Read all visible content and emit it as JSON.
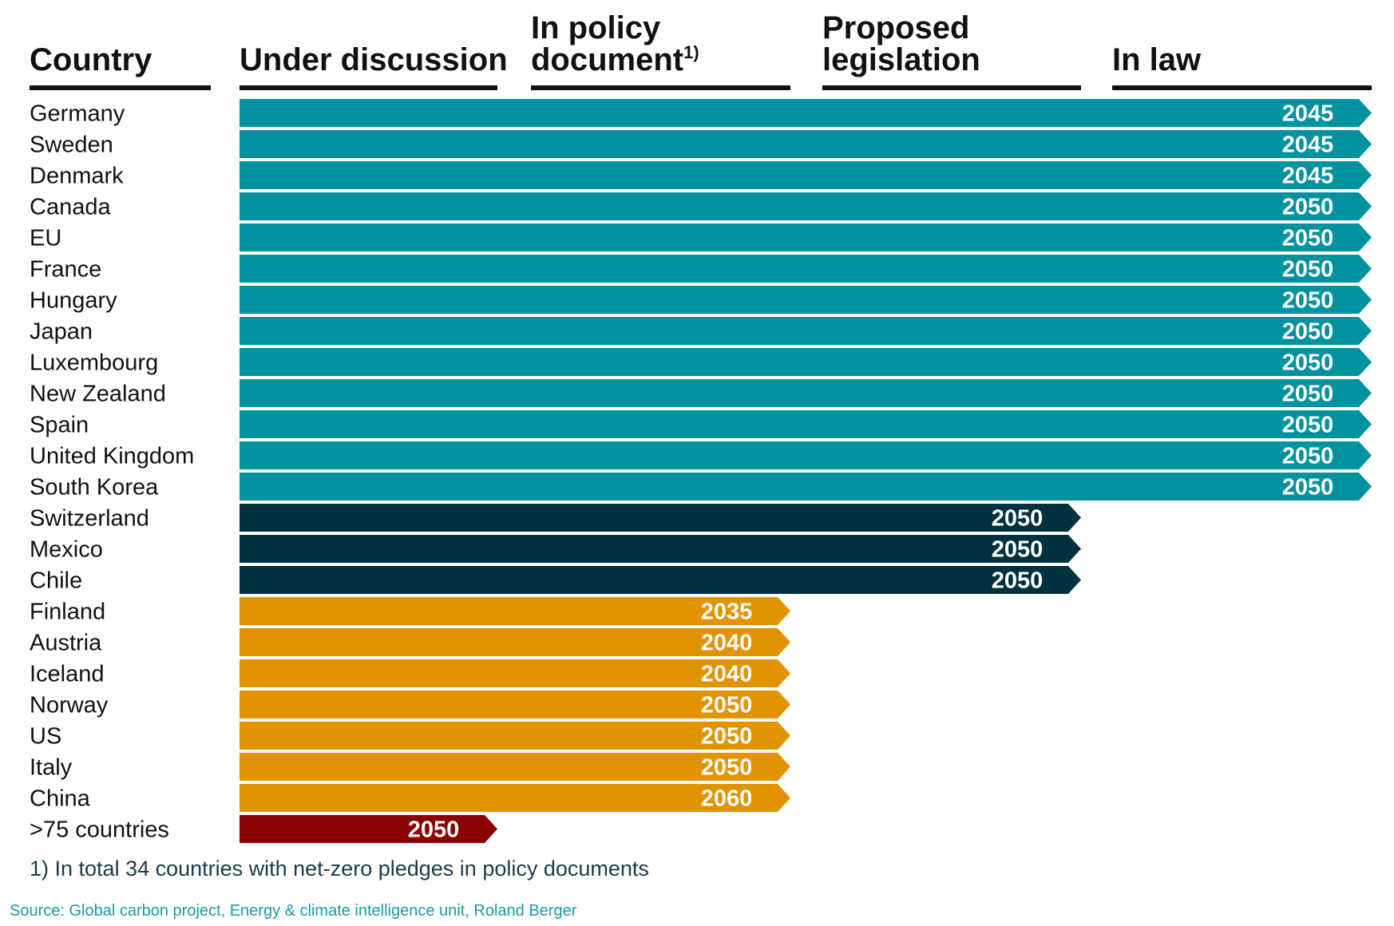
{
  "columns": {
    "country": "Country",
    "under_discussion": "Under discussion",
    "in_policy_line1": "In policy",
    "in_policy_line2": "document",
    "in_policy_sup": "1)",
    "proposed_line1": "Proposed",
    "proposed_line2": "legislation",
    "in_law": "In law"
  },
  "colors": {
    "in_law": "#00929E",
    "proposed_legislation": "#00313E",
    "in_policy_document": "#E39300",
    "under_discussion": "#8B0000"
  },
  "chart_data": {
    "type": "bar",
    "title": "",
    "stages": [
      "Under discussion",
      "In policy document",
      "Proposed legislation",
      "In law"
    ],
    "rows": [
      {
        "country": "Germany",
        "stage": "In law",
        "year": "2045"
      },
      {
        "country": "Sweden",
        "stage": "In law",
        "year": "2045"
      },
      {
        "country": "Denmark",
        "stage": "In law",
        "year": "2045"
      },
      {
        "country": "Canada",
        "stage": "In law",
        "year": "2050"
      },
      {
        "country": "EU",
        "stage": "In law",
        "year": "2050"
      },
      {
        "country": "France",
        "stage": "In law",
        "year": "2050"
      },
      {
        "country": "Hungary",
        "stage": "In law",
        "year": "2050"
      },
      {
        "country": "Japan",
        "stage": "In law",
        "year": "2050"
      },
      {
        "country": "Luxembourg",
        "stage": "In law",
        "year": "2050"
      },
      {
        "country": "New Zealand",
        "stage": "In law",
        "year": "2050"
      },
      {
        "country": "Spain",
        "stage": "In law",
        "year": "2050"
      },
      {
        "country": "United Kingdom",
        "stage": "In law",
        "year": "2050"
      },
      {
        "country": "South Korea",
        "stage": "In law",
        "year": "2050"
      },
      {
        "country": "Switzerland",
        "stage": "Proposed legislation",
        "year": "2050"
      },
      {
        "country": "Mexico",
        "stage": "Proposed legislation",
        "year": "2050"
      },
      {
        "country": "Chile",
        "stage": "Proposed legislation",
        "year": "2050"
      },
      {
        "country": "Finland",
        "stage": "In policy document",
        "year": "2035"
      },
      {
        "country": "Austria",
        "stage": "In policy document",
        "year": "2040"
      },
      {
        "country": "Iceland",
        "stage": "In policy document",
        "year": "2040"
      },
      {
        "country": "Norway",
        "stage": "In policy document",
        "year": "2050"
      },
      {
        "country": "US",
        "stage": "In policy document",
        "year": "2050"
      },
      {
        "country": "Italy",
        "stage": "In policy document",
        "year": "2050"
      },
      {
        "country": "China",
        "stage": "In policy document",
        "year": "2060"
      },
      {
        "country": ">75 countries",
        "stage": "Under discussion",
        "year": "2050"
      }
    ]
  },
  "footnote": "1) In total 34 countries with net-zero pledges in policy documents",
  "source": "Source: Global carbon project, Energy & climate intelligence unit, Roland Berger"
}
